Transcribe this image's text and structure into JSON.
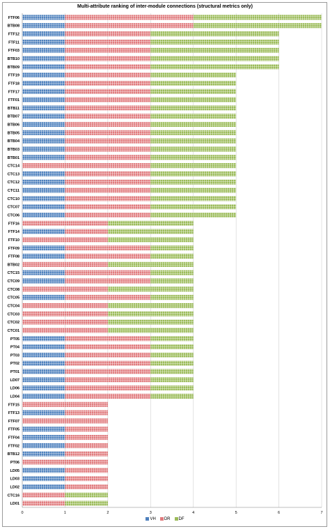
{
  "chart_data": {
    "type": "bar",
    "orientation": "horizontal",
    "stacked": true,
    "title": "Multi-attribute ranking of inter-module connections (structural metrics only)",
    "xlabel": "",
    "ylabel": "",
    "xlim": [
      0,
      7
    ],
    "xticks": [
      "0",
      "1",
      "2",
      "3",
      "4",
      "5",
      "6",
      "7"
    ],
    "grid": true,
    "legend_position": "bottom",
    "categories": [
      "FTF06",
      "BTB08",
      "FTF12",
      "FTF11",
      "FTF03",
      "BTB10",
      "BTB09",
      "FTF19",
      "FTF18",
      "FTF17",
      "FTF01",
      "BTB11",
      "BTB07",
      "BTB06",
      "BTB05",
      "BTB04",
      "BTB03",
      "BTB01",
      "CTC14",
      "CTC13",
      "CTC12",
      "CTC11",
      "CTC10",
      "CTC07",
      "CTC06",
      "FTF16",
      "FTF14",
      "FTF10",
      "FTF09",
      "FTF08",
      "BTB02",
      "CTC15",
      "CTC09",
      "CTC08",
      "CTC05",
      "CTC04",
      "CTC03",
      "CTC02",
      "CTC01",
      "PT05",
      "PT04",
      "PT03",
      "PT02",
      "PT01",
      "LD07",
      "LD06",
      "LD04",
      "FTF15",
      "FTF13",
      "FTF07",
      "FTF05",
      "FTF04",
      "FTF02",
      "BTB12",
      "PT06",
      "LD05",
      "LD03",
      "LD02",
      "CTC16",
      "LD01"
    ],
    "series": [
      {
        "name": "VH",
        "color": "#4f81bd",
        "values": [
          1,
          1,
          1,
          1,
          1,
          1,
          1,
          1,
          1,
          1,
          1,
          1,
          1,
          1,
          1,
          1,
          1,
          1,
          0,
          1,
          1,
          1,
          1,
          1,
          1,
          0,
          1,
          0,
          1,
          1,
          0,
          1,
          1,
          0,
          1,
          0,
          0,
          0,
          0,
          1,
          1,
          1,
          1,
          1,
          1,
          1,
          1,
          0,
          1,
          0,
          1,
          1,
          1,
          1,
          0,
          1,
          1,
          1,
          0,
          0
        ]
      },
      {
        "name": "DR",
        "color": "#e07b7e",
        "values": [
          3,
          3,
          2,
          2,
          2,
          2,
          2,
          2,
          2,
          2,
          2,
          2,
          2,
          2,
          2,
          2,
          2,
          2,
          3,
          2,
          2,
          2,
          2,
          2,
          2,
          2,
          1,
          2,
          2,
          2,
          2,
          2,
          2,
          2,
          2,
          2,
          2,
          2,
          2,
          2,
          2,
          2,
          2,
          2,
          2,
          2,
          2,
          2,
          1,
          2,
          1,
          1,
          1,
          1,
          2,
          1,
          1,
          1,
          1,
          1
        ]
      },
      {
        "name": "DF",
        "color": "#9bbb59",
        "values": [
          3,
          3,
          3,
          3,
          3,
          3,
          3,
          2,
          2,
          2,
          2,
          2,
          2,
          2,
          2,
          2,
          2,
          2,
          2,
          2,
          2,
          2,
          2,
          2,
          2,
          2,
          2,
          2,
          1,
          1,
          2,
          1,
          1,
          2,
          1,
          2,
          2,
          2,
          2,
          1,
          1,
          1,
          1,
          1,
          1,
          1,
          1,
          0,
          0,
          0,
          0,
          0,
          0,
          0,
          0,
          0,
          0,
          0,
          1,
          1
        ]
      }
    ]
  }
}
